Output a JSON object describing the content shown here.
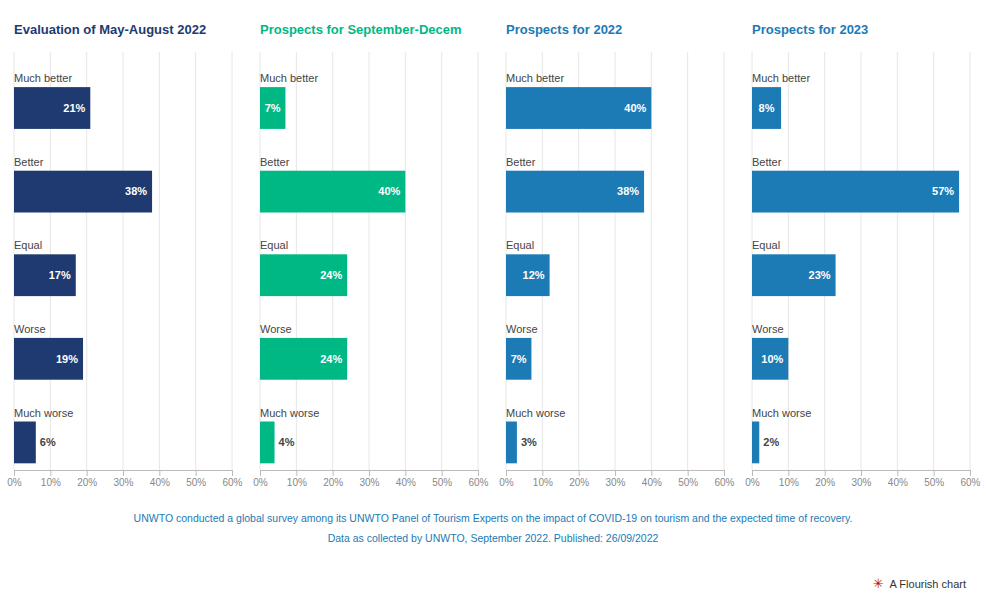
{
  "chart_data": [
    {
      "type": "bar",
      "orientation": "horizontal",
      "title": "Evaluation of May-August 2022",
      "categories": [
        "Much better",
        "Better",
        "Equal",
        "Worse",
        "Much worse"
      ],
      "values": [
        21,
        38,
        17,
        19,
        6
      ],
      "value_labels": [
        "21%",
        "38%",
        "17%",
        "19%",
        "6%"
      ],
      "color": "#1e3a70",
      "xlim": [
        0,
        60
      ],
      "xticks": [
        {
          "value": 0,
          "label": "0%"
        },
        {
          "value": 10,
          "label": "10%"
        },
        {
          "value": 20,
          "label": "20%"
        },
        {
          "value": 30,
          "label": "30%"
        },
        {
          "value": 40,
          "label": "40%"
        },
        {
          "value": 50,
          "label": "50%"
        },
        {
          "value": 60,
          "label": "60%"
        }
      ],
      "grid": true,
      "data_labels": true,
      "annotations": [
        "UNWTO conducted a global survey among its UNWTO Panel of Tourism Experts on the impact of COVID-19 on tourism and the expected time of recovery.",
        "Data as collected by UNWTO, September 2022. Published: 26/09/2022",
        "A Flourish chart",
        "✳"
      ]
    },
    {
      "type": "bar",
      "orientation": "horizontal",
      "title": "Prospects for September-Decem",
      "categories": [
        "Much better",
        "Better",
        "Equal",
        "Worse",
        "Much worse"
      ],
      "values": [
        7,
        40,
        24,
        24,
        4
      ],
      "value_labels": [
        "7%",
        "40%",
        "24%",
        "24%",
        "4%"
      ],
      "color": "#00b884",
      "xlim": [
        0,
        60
      ],
      "xticks": [
        {
          "value": 0,
          "label": "0%"
        },
        {
          "value": 10,
          "label": "10%"
        },
        {
          "value": 20,
          "label": "20%"
        },
        {
          "value": 30,
          "label": "30%"
        },
        {
          "value": 40,
          "label": "40%"
        },
        {
          "value": 50,
          "label": "50%"
        },
        {
          "value": 60,
          "label": "60%"
        }
      ],
      "grid": true,
      "data_labels": true
    },
    {
      "type": "bar",
      "orientation": "horizontal",
      "title": "Prospects for 2022",
      "categories": [
        "Much better",
        "Better",
        "Equal",
        "Worse",
        "Much worse"
      ],
      "values": [
        40,
        38,
        12,
        7,
        3
      ],
      "value_labels": [
        "40%",
        "38%",
        "12%",
        "7%",
        "3%"
      ],
      "color": "#1c7ab5",
      "xlim": [
        0,
        60
      ],
      "xticks": [
        {
          "value": 0,
          "label": "0%"
        },
        {
          "value": 10,
          "label": "10%"
        },
        {
          "value": 20,
          "label": "20%"
        },
        {
          "value": 30,
          "label": "30%"
        },
        {
          "value": 40,
          "label": "40%"
        },
        {
          "value": 50,
          "label": "50%"
        },
        {
          "value": 60,
          "label": "60%"
        }
      ],
      "grid": true,
      "data_labels": true
    },
    {
      "type": "bar",
      "orientation": "horizontal",
      "title": "Prospects for 2023",
      "categories": [
        "Much better",
        "Better",
        "Equal",
        "Worse",
        "Much worse"
      ],
      "values": [
        8,
        57,
        23,
        10,
        2
      ],
      "value_labels": [
        "8%",
        "57%",
        "23%",
        "10%",
        "2%"
      ],
      "color": "#1c7ab5",
      "xlim": [
        0,
        60
      ],
      "xticks": [
        {
          "value": 0,
          "label": "0%"
        },
        {
          "value": 10,
          "label": "10%"
        },
        {
          "value": 20,
          "label": "20%"
        },
        {
          "value": 30,
          "label": "30%"
        },
        {
          "value": 40,
          "label": "40%"
        },
        {
          "value": 50,
          "label": "50%"
        },
        {
          "value": 60,
          "label": "60%"
        }
      ],
      "grid": true,
      "data_labels": true
    }
  ]
}
